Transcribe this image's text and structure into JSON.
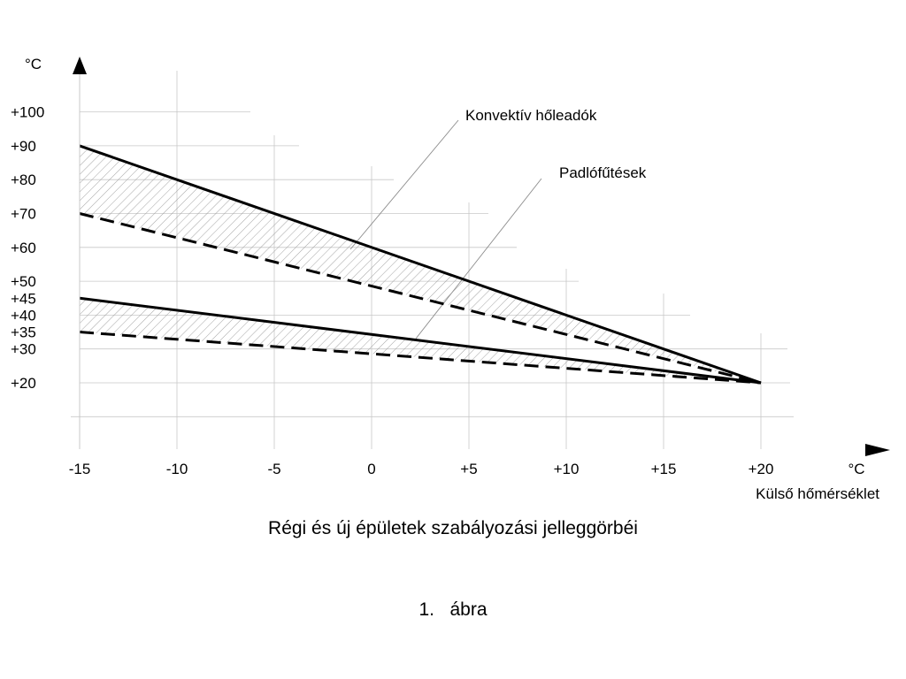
{
  "chart_data": {
    "type": "line",
    "title": "Régi és új épületek szabályozási jelleggörbéi",
    "xlabel": "Külső hőmérséklet",
    "x_unit": "°C",
    "y_unit": "°C",
    "xlim": [
      -15,
      22
    ],
    "ylim": [
      10,
      110
    ],
    "x_ticks": [
      -15,
      -10,
      -5,
      0,
      5,
      10,
      15,
      20
    ],
    "x_tick_labels": [
      "-15",
      "-10",
      "-5",
      "0",
      "+5",
      "+10",
      "+15",
      "+20"
    ],
    "y_ticks": [
      20,
      30,
      35,
      40,
      45,
      50,
      60,
      70,
      80,
      90,
      100
    ],
    "y_tick_labels": [
      "+20",
      "+30",
      "+35",
      "+40",
      "+45",
      "+50",
      "+60",
      "+70",
      "+80",
      "+90",
      "+100"
    ],
    "grid": true,
    "series": [
      {
        "style": "solid",
        "x": [
          -15,
          20
        ],
        "y": [
          90,
          20
        ]
      },
      {
        "style": "dashed",
        "x": [
          -15,
          20
        ],
        "y": [
          70,
          20
        ]
      },
      {
        "style": "solid",
        "x": [
          -15,
          20
        ],
        "y": [
          45,
          20
        ]
      },
      {
        "style": "dashed",
        "x": [
          -15,
          20
        ],
        "y": [
          35,
          20
        ]
      }
    ],
    "bands": [
      {
        "name": "Konvektív hőleadók",
        "upper_series": 0,
        "lower_series": 1,
        "fill": "hatched"
      },
      {
        "name": "Padlófűtések",
        "upper_series": 2,
        "lower_series": 3,
        "fill": "hatched"
      }
    ],
    "annotations": [
      {
        "text": "Konvektív hőleadók",
        "points_to_band": 0
      },
      {
        "text": "Padlófűtések",
        "points_to_band": 1
      }
    ]
  },
  "figure": {
    "title": "Régi és új épületek szabályozási jelleggörbéi",
    "number": "1.",
    "label": "ábra"
  },
  "colors": {
    "line": "#000000",
    "grid": "#c8c8c8",
    "hatch": "#9a9a9a",
    "leader": "#8c8c8c"
  }
}
